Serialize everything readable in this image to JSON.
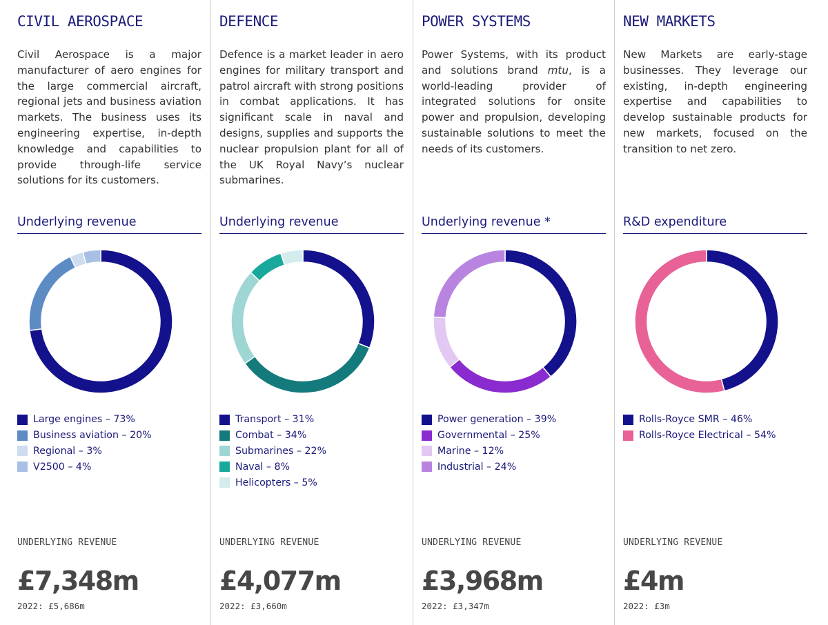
{
  "chart_data": [
    {
      "type": "pie",
      "segment": "CIVIL AEROSPACE",
      "description": "Civil Aerospace is a major manufacturer of aero engines for the large commercial aircraft, regional jets and business aviation markets. The business uses its engineering expertise, in-depth knowledge and capabilities to provide through-life service solutions for its customers.",
      "title": "Underlying revenue",
      "slices": [
        {
          "label": "Large engines – 73%",
          "value": 73,
          "color": "#14118c"
        },
        {
          "label": "Business aviation – 20%",
          "value": 20,
          "color": "#5d8bc4"
        },
        {
          "label": "Regional – 3%",
          "value": 3,
          "color": "#cddcee"
        },
        {
          "label": "V2500 – 4%",
          "value": 4,
          "color": "#a7c0e3"
        }
      ],
      "revenue_label": "UNDERLYING REVENUE",
      "revenue": "£7,348m",
      "previous": "2022: £5,686m"
    },
    {
      "type": "pie",
      "segment": "DEFENCE",
      "description": "Defence is a market leader in aero engines for military transport and patrol aircraft with strong positions in combat applications. It has significant scale in naval and designs, supplies and supports the nuclear propulsion plant for all of the UK Royal Navy’s nuclear submarines.",
      "title": "Underlying revenue",
      "slices": [
        {
          "label": "Transport – 31%",
          "value": 31,
          "color": "#14118c"
        },
        {
          "label": "Combat – 34%",
          "value": 34,
          "color": "#147a7c"
        },
        {
          "label": "Submarines – 22%",
          "value": 22,
          "color": "#9ed6d4"
        },
        {
          "label": "Naval – 8%",
          "value": 8,
          "color": "#19a99c"
        },
        {
          "label": "Helicopters – 5%",
          "value": 5,
          "color": "#d3ecee"
        }
      ],
      "revenue_label": "UNDERLYING REVENUE",
      "revenue": "£4,077m",
      "previous": "2022: £3,660m"
    },
    {
      "type": "pie",
      "segment": "POWER SYSTEMS",
      "description_parts": [
        "Power Systems, with its product and solutions brand ",
        "mtu",
        ", is a world-leading provider of integrated solutions for onsite power and propulsion, developing sustainable solutions to meet the needs of its customers."
      ],
      "title": "Underlying revenue *",
      "slices": [
        {
          "label": "Power generation – 39%",
          "value": 39,
          "color": "#14118c"
        },
        {
          "label": "Governmental – 25%",
          "value": 25,
          "color": "#8a2bd0"
        },
        {
          "label": "Marine – 12%",
          "value": 12,
          "color": "#e2c8f2"
        },
        {
          "label": "Industrial – 24%",
          "value": 24,
          "color": "#b884e0"
        }
      ],
      "revenue_label": "UNDERLYING REVENUE",
      "revenue": "£3,968m",
      "previous": "2022: £3,347m"
    },
    {
      "type": "pie",
      "segment": "NEW MARKETS",
      "description": "New Markets are early-stage businesses. They leverage our existing, in-depth engineering expertise and capabilities to develop sustainable products for new markets, focused on the transition to net zero.",
      "title": "R&D expenditure",
      "slices": [
        {
          "label": "Rolls-Royce SMR – 46%",
          "value": 46,
          "color": "#14118c"
        },
        {
          "label": "Rolls-Royce Electrical – 54%",
          "value": 54,
          "color": "#e86298"
        }
      ],
      "revenue_label": "UNDERLYING REVENUE",
      "revenue": "£4m",
      "previous": "2022: £3m"
    }
  ]
}
